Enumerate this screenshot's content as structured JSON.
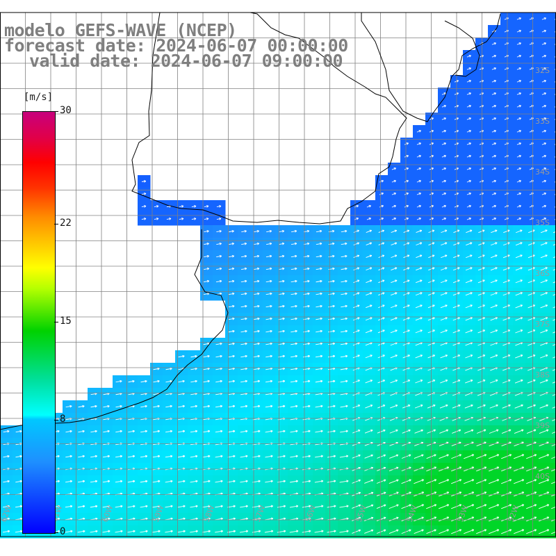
{
  "title": {
    "line1": "modelo GEFS-WAVE (NCEP)",
    "line2": "forecast date: 2024-06-07 00:00:00",
    "line3": "valid date: 2024-06-07 09:00:00"
  },
  "colorbar": {
    "unit": "[m/s]",
    "min": 0,
    "max": 30,
    "ticks": [
      {
        "label": "30",
        "value": 30
      },
      {
        "label": "22",
        "value": 22
      },
      {
        "label": "15",
        "value": 15
      },
      {
        "label": "8",
        "value": 8
      },
      {
        "label": "0",
        "value": 0
      }
    ]
  },
  "lat_labels": [
    "32S",
    "33S",
    "34S",
    "35S",
    "36S",
    "37S",
    "38S",
    "39S",
    "40S"
  ],
  "lon_labels": [
    "62W",
    "61W",
    "60W",
    "59W",
    "58W",
    "57W",
    "56W",
    "55W",
    "54W",
    "53W",
    "52W"
  ],
  "colors": {
    "land": "#ffffff",
    "grid": "#808080",
    "coast": "#000000",
    "arrows": "#ffffff",
    "text": "#7f7f7f"
  }
}
